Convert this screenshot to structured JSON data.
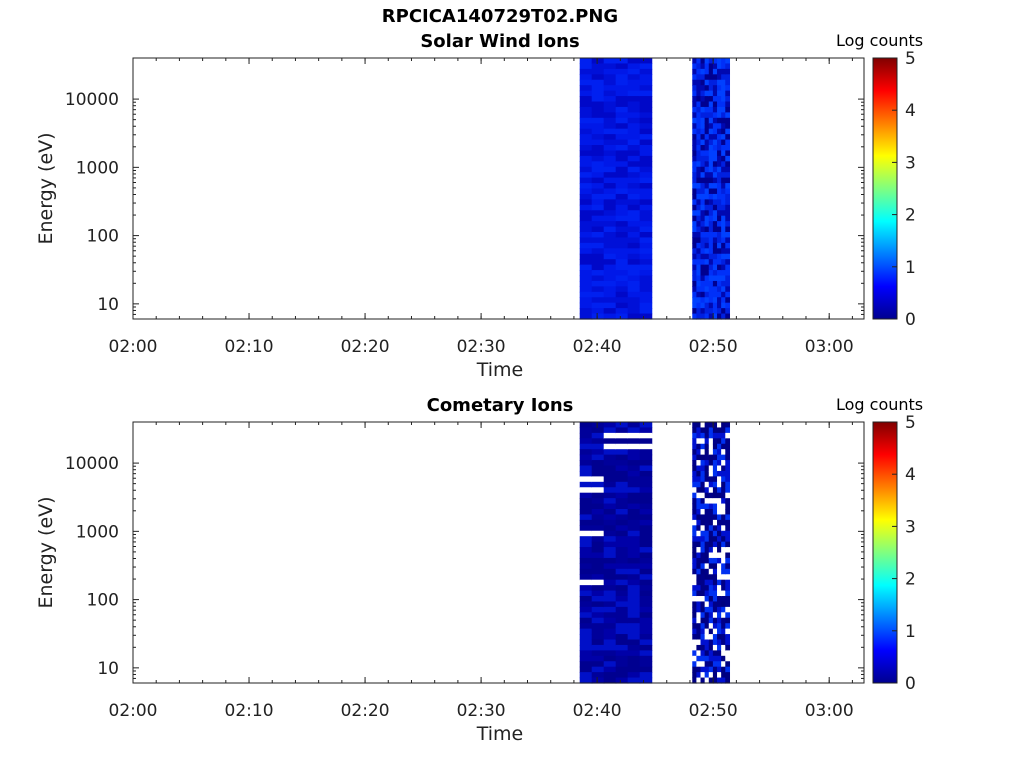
{
  "chart_data": {
    "title": "RPCICA140729T02.PNG",
    "type": "heatmap",
    "x_range": [
      "02:00",
      "03:03"
    ],
    "xticks": [
      "02:00",
      "02:10",
      "02:20",
      "02:30",
      "02:40",
      "02:50",
      "03:00"
    ],
    "y_scale": "log",
    "y_range": [
      6,
      40000
    ],
    "yticks": [
      10,
      100,
      1000,
      10000
    ],
    "yticklabels": [
      "10",
      "100",
      "1000",
      "10000"
    ],
    "colorbar": {
      "label": "Log counts",
      "range": [
        0,
        5
      ],
      "ticks": [
        "0",
        "1",
        "2",
        "3",
        "4",
        "5"
      ],
      "colormap": "jet"
    },
    "colors": {
      "dark_navy": "#000080",
      "blue": "#0010e0",
      "bright_blue": "#0040ff"
    },
    "panels": [
      {
        "title": "Solar Wind Ions",
        "xlabel": "Time",
        "ylabel": "Energy (eV)",
        "data_blocks": [
          {
            "start": "02:38.5",
            "end": "02:44.7",
            "log_counts_approx": 0.5
          },
          {
            "start": "02:48.2",
            "end": "02:51.4",
            "log_counts_approx": 0.7
          }
        ]
      },
      {
        "title": "Cometary Ions",
        "xlabel": "Time",
        "ylabel": "Energy (eV)",
        "data_blocks": [
          {
            "start": "02:38.5",
            "end": "02:44.7",
            "log_counts_approx": 0.3
          },
          {
            "start": "02:48.2",
            "end": "02:51.4",
            "log_counts_approx": 0.4
          }
        ]
      }
    ]
  }
}
